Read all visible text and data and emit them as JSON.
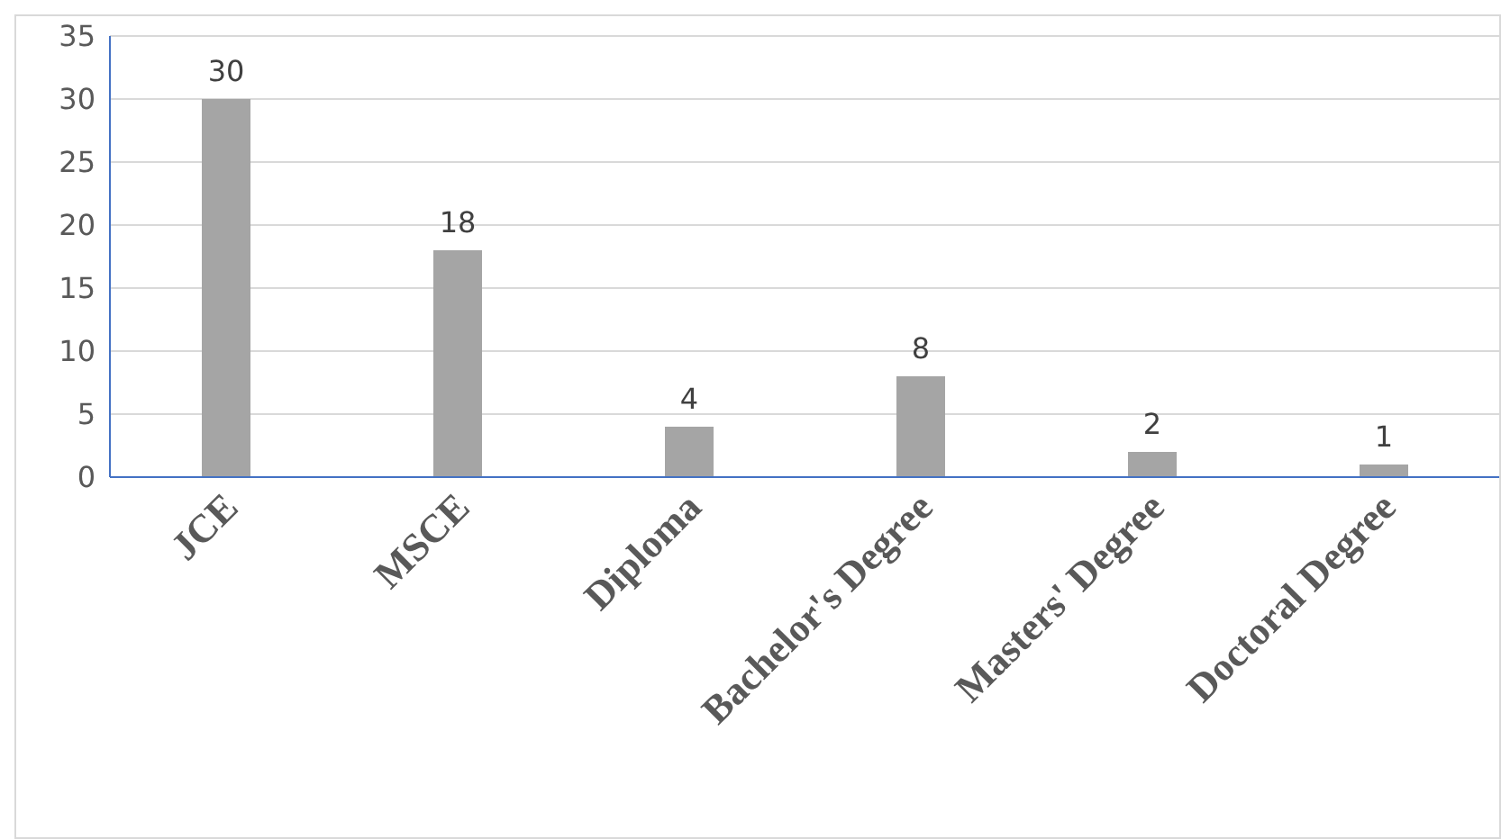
{
  "chart_data": {
    "type": "bar",
    "categories": [
      "JCE",
      "MSCE",
      "Diploma",
      "Bachelor's Degree",
      "Masters' Degree",
      "Doctoral Degree"
    ],
    "values": [
      30,
      18,
      4,
      8,
      2,
      1
    ],
    "color": "#a5a5a5",
    "ylim": [
      0,
      35
    ],
    "yticks": [
      0,
      5,
      10,
      15,
      20,
      25,
      30,
      35
    ],
    "grid": "y",
    "data_labels": true,
    "legend": false
  }
}
